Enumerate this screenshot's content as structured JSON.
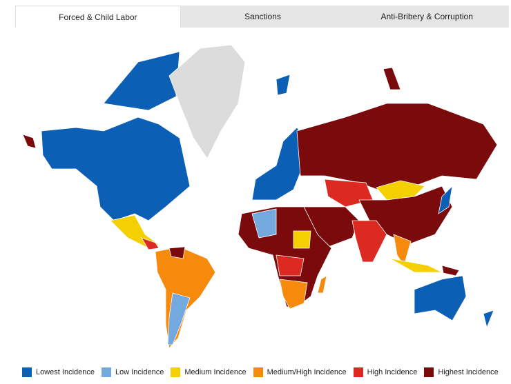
{
  "tabs": [
    {
      "label": "Forced & Child Labor",
      "active": true
    },
    {
      "label": "Sanctions",
      "active": false
    },
    {
      "label": "Anti-Bribery & Corruption",
      "active": false
    }
  ],
  "legend": [
    {
      "label": "Lowest Incidence",
      "color": "#0b5fb5"
    },
    {
      "label": "Low Incidence",
      "color": "#73a9de"
    },
    {
      "label": "Medium Incidence",
      "color": "#f5d000"
    },
    {
      "label": "Medium/High Incidence",
      "color": "#f68a0d"
    },
    {
      "label": "High Incidence",
      "color": "#dc2a22"
    },
    {
      "label": "Highest Incidence",
      "color": "#7a0a0c"
    }
  ]
}
